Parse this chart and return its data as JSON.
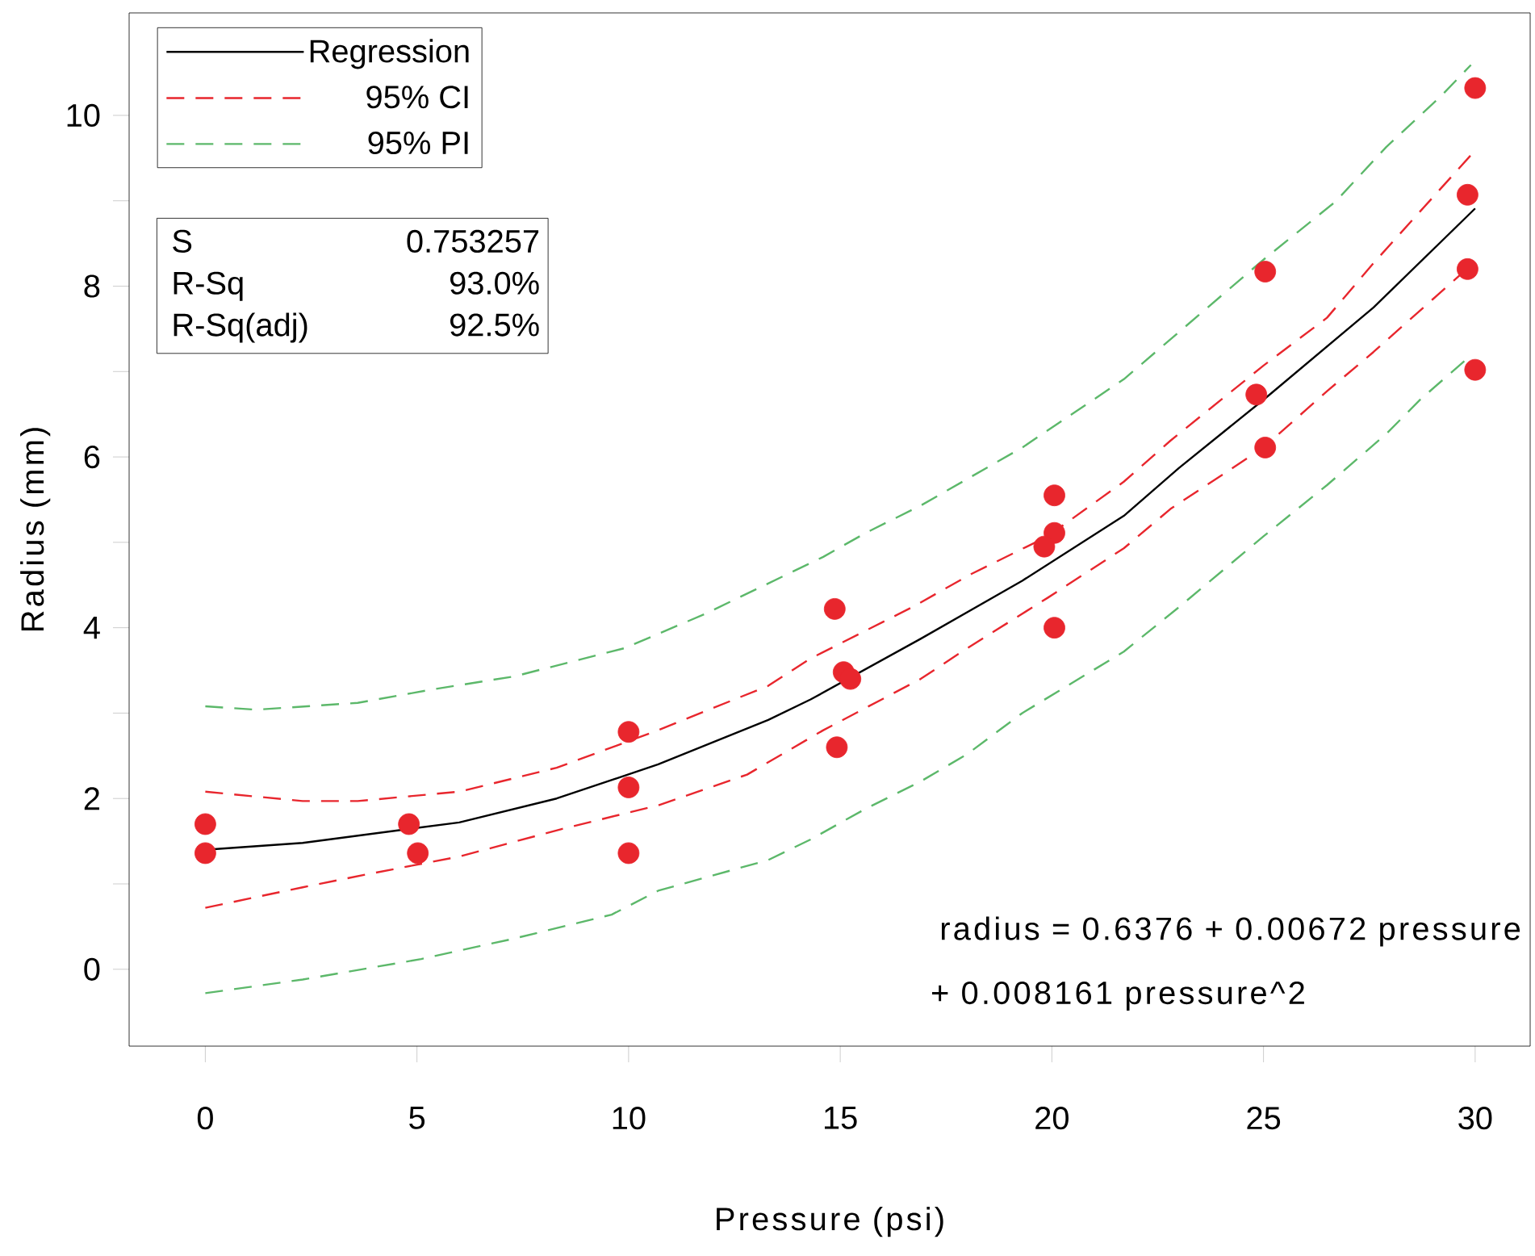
{
  "chart_data": {
    "type": "line",
    "xlabel": "Pressure (psi)",
    "ylabel": "Radius (mm)",
    "xlim": [
      -1.8,
      31.3
    ],
    "ylim": [
      -0.9,
      11.2
    ],
    "xticks": [
      0,
      5,
      10,
      15,
      20,
      25,
      30
    ],
    "yticks": [
      0,
      {
        "value": 1,
        "label": null
      },
      2,
      {
        "value": 3,
        "label": null
      },
      4,
      {
        "value": 5,
        "label": null
      },
      6,
      {
        "value": 7,
        "label": null
      },
      8,
      {
        "value": 9,
        "label": null
      },
      10
    ],
    "grid": false,
    "legend": "top left",
    "series": [
      {
        "name": "Regression",
        "type": "line",
        "color": "#000000",
        "line_style": "solid",
        "x": [
          0,
          2.3,
          6,
          8.3,
          10.7,
          13.3,
          14.3,
          16.9,
          19.3,
          21.7,
          23,
          25,
          27.6,
          30
        ],
        "values": [
          1.4,
          1.48,
          1.72,
          2.0,
          2.4,
          2.92,
          3.16,
          3.87,
          4.55,
          5.31,
          5.87,
          6.67,
          7.75,
          8.91
        ]
      },
      {
        "name": "95% CI",
        "type": "line",
        "color": "#e8262d",
        "line_style": "dashed",
        "x": [
          0,
          2.3,
          3.6,
          6,
          8.3,
          10.7,
          13.3,
          14.3,
          16.7,
          18.1,
          19.9,
          21.7,
          22.8,
          25,
          26.5,
          27.6,
          30
        ],
        "values": [
          2.08,
          1.97,
          1.97,
          2.08,
          2.36,
          2.8,
          3.32,
          3.64,
          4.24,
          4.63,
          5.07,
          5.71,
          6.19,
          7.07,
          7.63,
          8.27,
          9.59
        ]
      },
      {
        "type": "line",
        "color": "#e8262d",
        "line_style": "dashed",
        "x": [
          0,
          2.3,
          3.9,
          6,
          8.4,
          10.7,
          12.8,
          14.6,
          16.9,
          18,
          19.9,
          21.7,
          22.8,
          25,
          26.5,
          27.6,
          29.8
        ],
        "values": [
          0.72,
          0.96,
          1.12,
          1.32,
          1.64,
          1.92,
          2.28,
          2.8,
          3.4,
          3.76,
          4.35,
          4.93,
          5.39,
          6.11,
          6.77,
          7.23,
          8.2
        ]
      },
      {
        "name": "95% PI",
        "type": "line",
        "color": "#5cb86a",
        "line_style": "dashed",
        "x": [
          0,
          1.2,
          3.6,
          5.4,
          7.3,
          9.9,
          11.8,
          14.6,
          15.6,
          16.9,
          19.3,
          21.7,
          25,
          26.7,
          27.9,
          29.2,
          29.9
        ],
        "values": [
          3.08,
          3.04,
          3.12,
          3.28,
          3.43,
          3.76,
          4.16,
          4.83,
          5.11,
          5.43,
          6.11,
          6.91,
          8.31,
          8.99,
          9.63,
          10.23,
          10.59
        ]
      },
      {
        "type": "line",
        "color": "#5cb86a",
        "line_style": "dashed",
        "x": [
          0,
          2.3,
          5.1,
          7.3,
          9.6,
          10.7,
          13.3,
          14.3,
          15.6,
          16.9,
          18,
          19.3,
          21.7,
          23,
          25,
          26.5,
          27.9,
          28.7,
          29.9
        ],
        "values": [
          -0.28,
          -0.12,
          0.12,
          0.36,
          0.64,
          0.92,
          1.28,
          1.52,
          1.88,
          2.2,
          2.52,
          3.0,
          3.72,
          4.24,
          5.07,
          5.67,
          6.27,
          6.67,
          7.19
        ]
      },
      {
        "type": "scatter",
        "color": "#e8262d",
        "marker": "circle",
        "x": [
          0,
          0,
          4.81,
          5.02,
          10,
          10,
          10,
          14.87,
          15.08,
          15.24,
          14.92,
          20.06,
          20.06,
          19.82,
          20.06,
          25.04,
          24.83,
          25.04,
          30,
          29.82,
          29.82,
          30
        ],
        "values": [
          1.7,
          1.36,
          1.7,
          1.36,
          2.78,
          2.13,
          1.36,
          4.22,
          3.48,
          3.4,
          2.6,
          5.55,
          5.11,
          4.95,
          4.0,
          8.17,
          6.73,
          6.11,
          10.32,
          9.07,
          8.2,
          7.02
        ]
      }
    ],
    "annotations": [
      "S",
      "0.753257",
      "R-Sq",
      "93.0%",
      "R-Sq(adj)",
      "92.5%",
      "radius =  0.6376 +  0.00672 pressure",
      "+  0.008161 pressure^2"
    ]
  }
}
